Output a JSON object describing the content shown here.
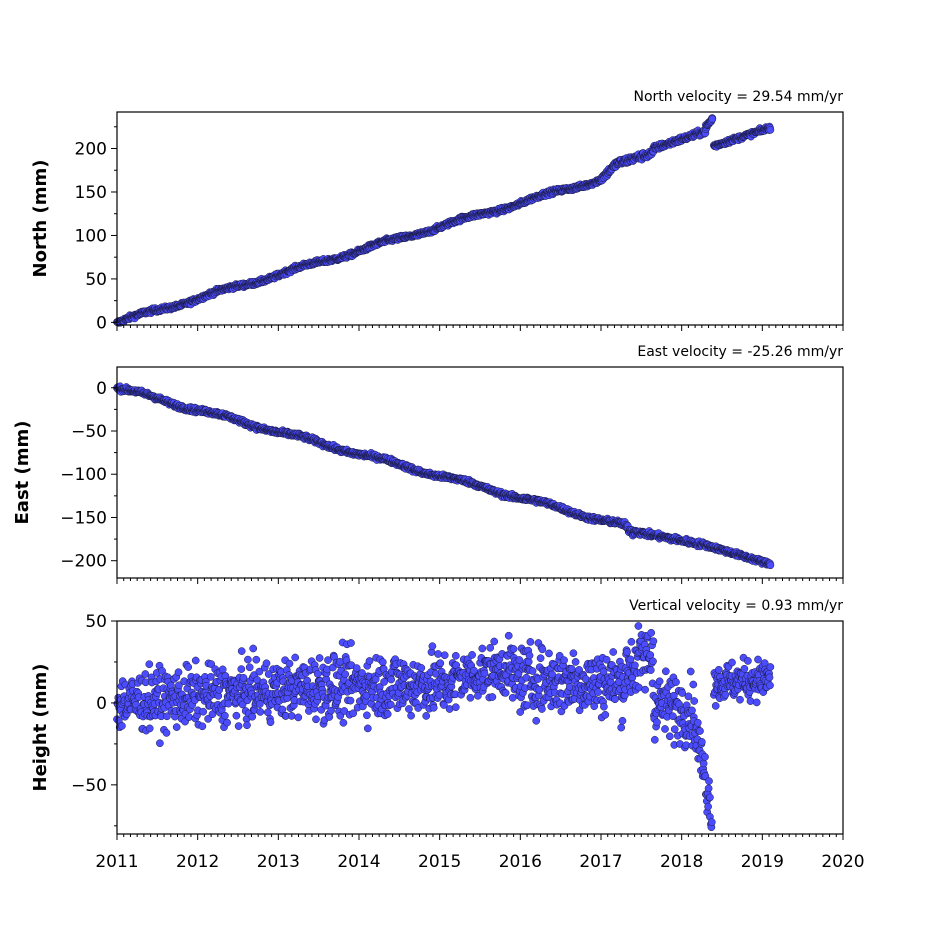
{
  "chart_data": [
    {
      "type": "scatter",
      "ylabel": "North (mm)",
      "velocity_text": "North velocity = 29.54 mm/yr",
      "xlim": [
        2011,
        2020
      ],
      "ylim": [
        -3,
        242
      ],
      "y_ticks": [
        0,
        50,
        100,
        150,
        200
      ],
      "y_tick_labels": [
        "0",
        "50",
        "100",
        "150",
        "200"
      ],
      "segments": [
        {
          "t0": 2011.0,
          "t1": 2017.0,
          "v0": 0,
          "v1": 165,
          "noise": 1.2,
          "wave": 2
        },
        {
          "t0": 2017.0,
          "t1": 2017.2,
          "v0": 165,
          "v1": 183,
          "noise": 2,
          "wave": 0
        },
        {
          "t0": 2017.2,
          "t1": 2017.65,
          "v0": 183,
          "v1": 195,
          "noise": 2,
          "wave": 0
        },
        {
          "t0": 2017.65,
          "t1": 2018.3,
          "v0": 200,
          "v1": 220,
          "noise": 1.5,
          "wave": 0
        },
        {
          "t0": 2018.3,
          "t1": 2018.38,
          "v0": 224,
          "v1": 234,
          "noise": 2,
          "wave": 0
        },
        {
          "t0": 2018.38,
          "t1": 2018.38,
          "v0": 234,
          "v1": 234,
          "noise": 0,
          "wave": 0
        },
        {
          "t0": 2018.4,
          "t1": 2019.1,
          "v0": 203,
          "v1": 224,
          "noise": 1.2,
          "wave": 0
        }
      ]
    },
    {
      "type": "scatter",
      "ylabel": "East (mm)",
      "velocity_text": "East velocity = -25.26 mm/yr",
      "xlim": [
        2011,
        2020
      ],
      "ylim": [
        -220,
        24
      ],
      "y_ticks": [
        0,
        -50,
        -100,
        -150,
        -200
      ],
      "y_tick_labels": [
        "0",
        "−50",
        "−100",
        "−150",
        "−200"
      ],
      "segments": [
        {
          "t0": 2011.0,
          "t1": 2017.3,
          "v0": 0,
          "v1": -160,
          "noise": 1.3,
          "wave": 2
        },
        {
          "t0": 2017.3,
          "t1": 2017.4,
          "v0": -160,
          "v1": -168,
          "noise": 2,
          "wave": 0
        },
        {
          "t0": 2017.4,
          "t1": 2018.3,
          "v0": -166,
          "v1": -182,
          "noise": 1.5,
          "wave": 0
        },
        {
          "t0": 2018.3,
          "t1": 2019.1,
          "v0": -182,
          "v1": -204,
          "noise": 1.2,
          "wave": 0
        }
      ]
    },
    {
      "type": "scatter",
      "ylabel": "Height (mm)",
      "velocity_text": "Vertical velocity = 0.93 mm/yr",
      "xlim": [
        2011,
        2020
      ],
      "ylim": [
        -80,
        50
      ],
      "y_ticks": [
        50,
        0,
        -50
      ],
      "y_tick_labels": [
        "50",
        "0",
        "−50"
      ],
      "segments": [
        {
          "t0": 2011.0,
          "t1": 2013.5,
          "v0": 0,
          "v1": 10,
          "noise": 9,
          "wave": 0
        },
        {
          "t0": 2013.5,
          "t1": 2015.2,
          "v0": 10,
          "v1": 12,
          "noise": 10,
          "wave": 0
        },
        {
          "t0": 2015.2,
          "t1": 2015.9,
          "v0": 15,
          "v1": 22,
          "noise": 8,
          "wave": 0
        },
        {
          "t0": 2015.9,
          "t1": 2017.3,
          "v0": 15,
          "v1": 12,
          "noise": 10,
          "wave": 0
        },
        {
          "t0": 2017.3,
          "t1": 2017.65,
          "v0": 20,
          "v1": 30,
          "noise": 10,
          "wave": 0
        },
        {
          "t0": 2017.65,
          "t1": 2018.15,
          "v0": 0,
          "v1": -5,
          "noise": 10,
          "wave": 0
        },
        {
          "t0": 2018.15,
          "t1": 2018.35,
          "v0": -10,
          "v1": -60,
          "noise": 8,
          "wave": 0
        },
        {
          "t0": 2018.35,
          "t1": 2018.38,
          "v0": -65,
          "v1": -75,
          "noise": 6,
          "wave": 0
        },
        {
          "t0": 2018.4,
          "t1": 2019.1,
          "v0": 12,
          "v1": 15,
          "noise": 6,
          "wave": 0
        }
      ]
    }
  ],
  "x_ticks": [
    2011,
    2012,
    2013,
    2014,
    2015,
    2016,
    2017,
    2018,
    2019,
    2020
  ],
  "x_tick_labels": [
    "2011",
    "2012",
    "2013",
    "2014",
    "2015",
    "2016",
    "2017",
    "2018",
    "2019",
    "2020"
  ]
}
